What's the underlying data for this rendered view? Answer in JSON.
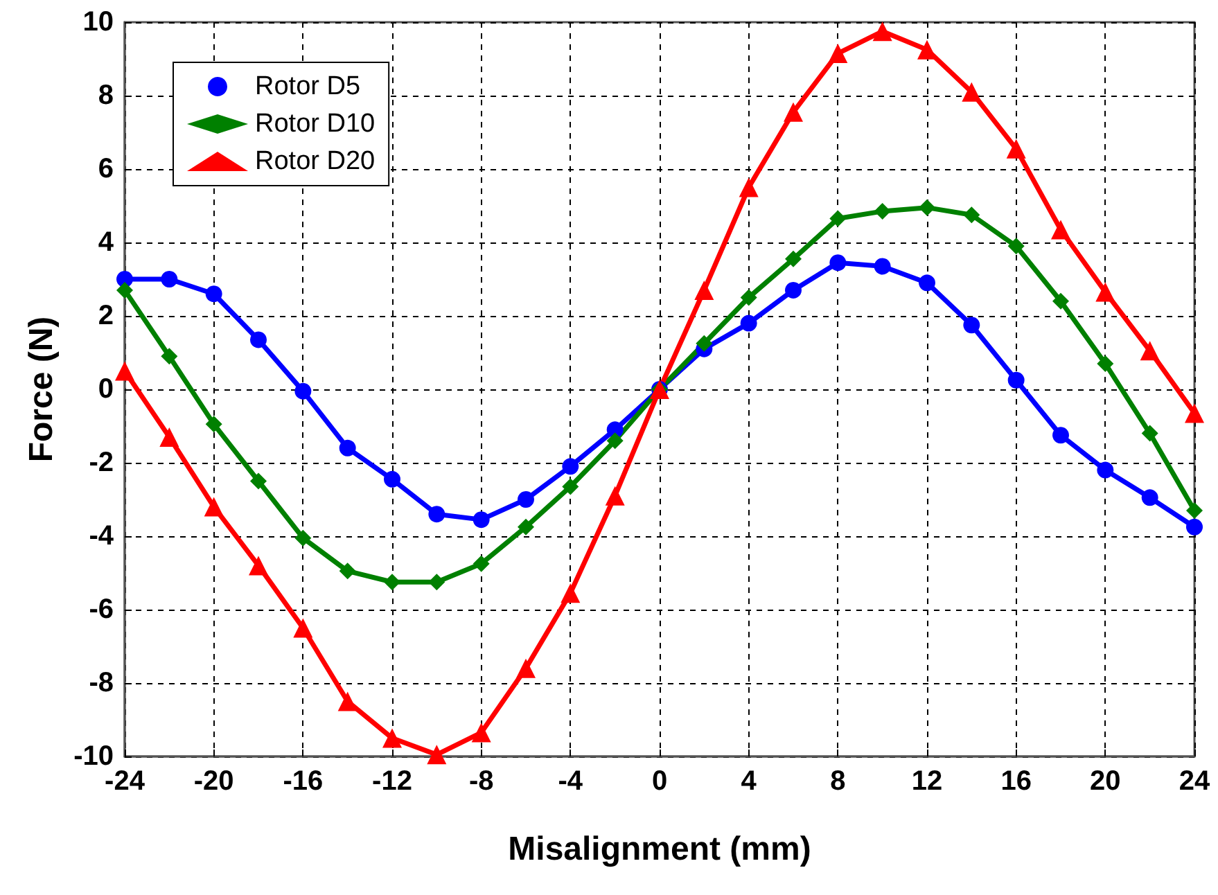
{
  "chart_data": {
    "type": "line",
    "xlabel": "Misalignment (mm)",
    "ylabel": "Force (N)",
    "x": [
      -24,
      -22,
      -20,
      -18,
      -16,
      -14,
      -12,
      -10,
      -8,
      -6,
      -4,
      -2,
      0,
      2,
      4,
      6,
      8,
      10,
      12,
      14,
      16,
      18,
      20,
      22,
      24
    ],
    "series": [
      {
        "name": "Rotor D5",
        "color": "#0000ff",
        "marker": "circle",
        "values": [
          3.0,
          3.0,
          2.6,
          1.35,
          -0.05,
          -1.6,
          -2.45,
          -3.4,
          -3.55,
          -3.0,
          -2.1,
          -1.1,
          0,
          1.1,
          1.8,
          2.7,
          3.45,
          3.35,
          2.9,
          1.75,
          0.25,
          -1.25,
          -2.2,
          -2.95,
          -3.75
        ]
      },
      {
        "name": "Rotor D10",
        "color": "#008000",
        "marker": "diamond",
        "values": [
          2.7,
          0.9,
          -0.95,
          -2.5,
          -4.05,
          -4.95,
          -5.25,
          -5.25,
          -4.75,
          -3.75,
          -2.65,
          -1.4,
          0,
          1.25,
          2.5,
          3.55,
          4.65,
          4.85,
          4.95,
          4.75,
          3.9,
          2.4,
          0.7,
          -1.2,
          -3.3
        ]
      },
      {
        "name": "Rotor D20",
        "color": "#ff0000",
        "marker": "triangle",
        "values": [
          0.5,
          -1.3,
          -3.2,
          -4.8,
          -6.5,
          -8.5,
          -9.5,
          -9.95,
          -9.35,
          -7.6,
          -5.55,
          -2.9,
          0,
          2.7,
          5.5,
          7.55,
          9.15,
          9.75,
          9.25,
          8.1,
          6.55,
          4.35,
          2.65,
          1.05,
          -0.65
        ]
      }
    ],
    "xlim": [
      -24,
      24
    ],
    "xticks": [
      -24,
      -20,
      -16,
      -12,
      -8,
      -4,
      0,
      4,
      8,
      12,
      16,
      20,
      24
    ],
    "ylim": [
      -10,
      10
    ],
    "yticks": [
      -10,
      -8,
      -6,
      -4,
      -2,
      0,
      2,
      4,
      6,
      8,
      10
    ],
    "grid": true,
    "legend": "top left",
    "line_style": "solid"
  }
}
